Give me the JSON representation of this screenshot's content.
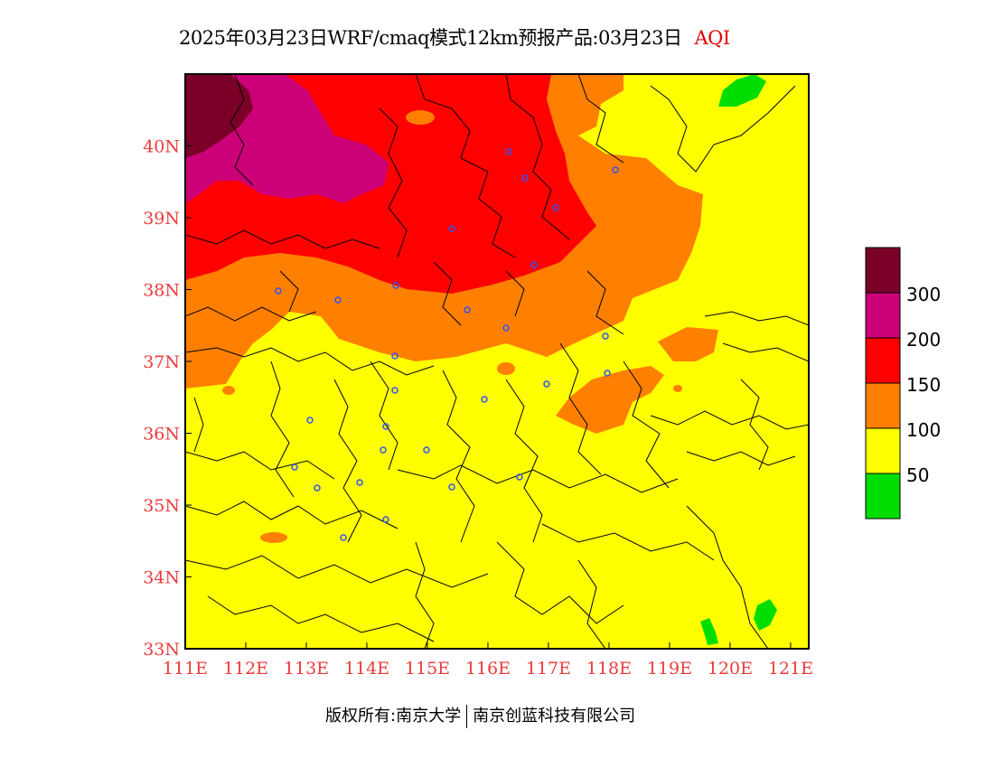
{
  "title": {
    "main": "2025年03月23日WRF/cmaq模式12km预报产品:03月23日",
    "product": "AQI"
  },
  "axes": {
    "lat_labels": [
      "40N",
      "39N",
      "38N",
      "37N",
      "36N",
      "35N",
      "34N",
      "33N"
    ],
    "lon_labels": [
      "111E",
      "112E",
      "113E",
      "114E",
      "115E",
      "116E",
      "117E",
      "118E",
      "119E",
      "120E",
      "121E"
    ],
    "lat_range": [
      33,
      41
    ],
    "lon_range": [
      111,
      121.3
    ]
  },
  "legend": {
    "levels": [
      "300",
      "200",
      "150",
      "100",
      "50"
    ],
    "colors": [
      "#7a0028",
      "#cc0077",
      "#ff0000",
      "#ff7f00",
      "#ffff00",
      "#00dd00"
    ]
  },
  "footer": {
    "left": "版权所有:南京大学",
    "right": "南京创蓝科技有限公司"
  }
}
